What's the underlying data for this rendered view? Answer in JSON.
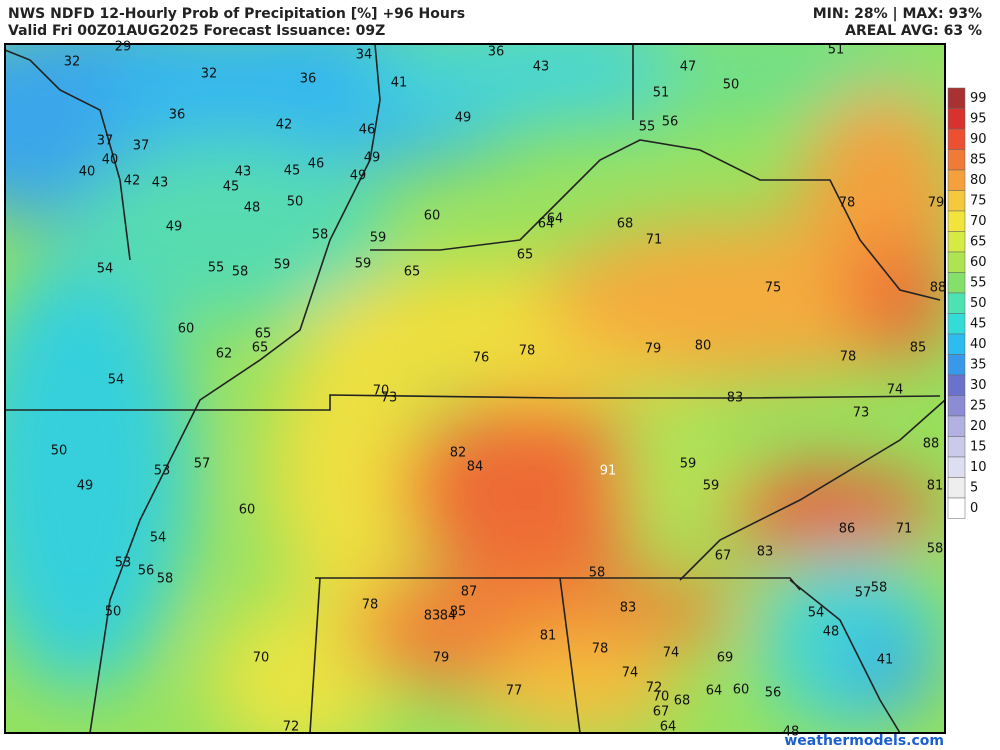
{
  "header": {
    "title": "NWS NDFD 12-Hourly Prob of Precipitation [%] +96 Hours",
    "subtitle": "Valid Fri 00Z01AUG2025  Forecast Issuance: 09Z",
    "minmax": "MIN: 28% | MAX: 93%",
    "areal_avg": "AREAL AVG: 63 %"
  },
  "legend": {
    "values": [
      99,
      95,
      90,
      85,
      80,
      75,
      70,
      65,
      60,
      55,
      50,
      45,
      40,
      35,
      30,
      25,
      20,
      15,
      10,
      5,
      0
    ],
    "colors": [
      "#a83232",
      "#d8322e",
      "#ec5032",
      "#f07a38",
      "#f4a03c",
      "#f6c83e",
      "#f2e43c",
      "#d6ea44",
      "#aee452",
      "#84e06a",
      "#4ee2b2",
      "#34dcd8",
      "#2cbcef",
      "#3a98e8",
      "#6a72cc",
      "#8c8cd4",
      "#b2b2e2",
      "#cacaea",
      "#dedef2",
      "#eeeeee",
      "#ffffff"
    ]
  },
  "map_labels": [
    29,
    32,
    32,
    36,
    34,
    41,
    36,
    43,
    47,
    50,
    51,
    51,
    49,
    36,
    42,
    46,
    55,
    56,
    37,
    37,
    40,
    40,
    42,
    43,
    43,
    45,
    45,
    46,
    49,
    49,
    50,
    48,
    49,
    58,
    59,
    60,
    64,
    64,
    68,
    71,
    78,
    79,
    54,
    55,
    58,
    59,
    59,
    65,
    65,
    75,
    88,
    60,
    65,
    65,
    62,
    76,
    78,
    79,
    80,
    78,
    85,
    54,
    70,
    73,
    83,
    74,
    73,
    88,
    82,
    84,
    91,
    59,
    59,
    81,
    50,
    53,
    57,
    49,
    60,
    86,
    71,
    54,
    67,
    83,
    58,
    53,
    56,
    58,
    58,
    87,
    78,
    83,
    84,
    85,
    83,
    57,
    58,
    54,
    48,
    50,
    81,
    78,
    79,
    74,
    69,
    41,
    70,
    74,
    72,
    64,
    60,
    56,
    77,
    70,
    68,
    67,
    64,
    72,
    48
  ],
  "watermark": "weathermodels.com"
}
